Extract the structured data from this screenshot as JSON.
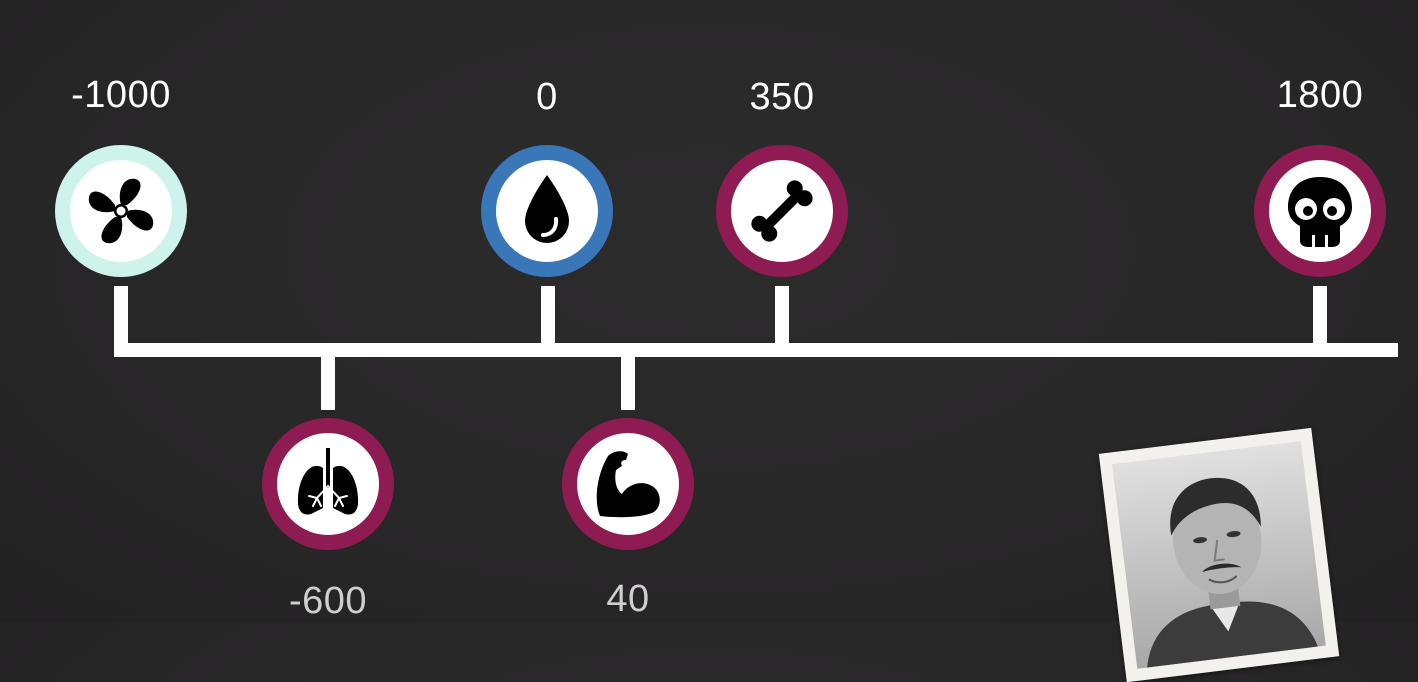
{
  "colors": {
    "teal_ring": "#cdf3ea",
    "blue_ring": "#3a77b8",
    "maroon_ring": "#8e1b51",
    "line": "#ffffff",
    "background": "#272627"
  },
  "events": [
    {
      "year": "-1000",
      "icon": "fan-icon",
      "ring": "#cdf3ea",
      "position": "above"
    },
    {
      "year": "0",
      "icon": "water-drop-icon",
      "ring": "#3a77b8",
      "position": "above"
    },
    {
      "year": "350",
      "icon": "bone-icon",
      "ring": "#8e1b51",
      "position": "above"
    },
    {
      "year": "1800",
      "icon": "skull-icon",
      "ring": "#8e1b51",
      "position": "above"
    },
    {
      "year": "-600",
      "icon": "lungs-icon",
      "ring": "#8e1b51",
      "position": "below"
    },
    {
      "year": "40",
      "icon": "flexed-arm-icon",
      "ring": "#8e1b51",
      "position": "below"
    }
  ],
  "portrait": {
    "icon": "portrait-photo"
  }
}
